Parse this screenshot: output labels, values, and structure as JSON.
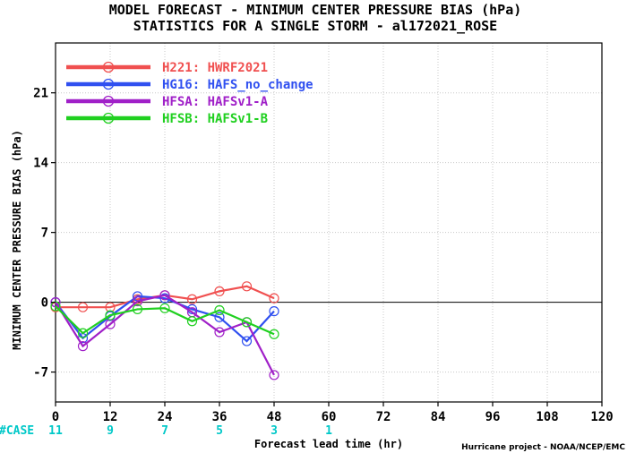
{
  "title_line1": "MODEL FORECAST - MINIMUM CENTER PRESSURE BIAS (hPa)",
  "title_line2": "STATISTICS FOR A SINGLE STORM - al172021_ROSE",
  "credit": "Hurricane project - NOAA/NCEP/EMC",
  "case_label": "#CASE",
  "case_counts": [
    {
      "x": 0,
      "n": "11"
    },
    {
      "x": 12,
      "n": "9"
    },
    {
      "x": 24,
      "n": "7"
    },
    {
      "x": 36,
      "n": "5"
    },
    {
      "x": 48,
      "n": "3"
    },
    {
      "x": 60,
      "n": "1"
    }
  ],
  "chart_data": {
    "type": "line",
    "title": "MODEL FORECAST - MINIMUM CENTER PRESSURE BIAS (hPa)",
    "subtitle": "STATISTICS FOR A SINGLE STORM - al172021_ROSE",
    "xlabel": "Forecast lead time (hr)",
    "ylabel": "MINIMUM CENTER PRESSURE BIAS (hPa)",
    "xlim": [
      0,
      120
    ],
    "ylim": [
      -10,
      26
    ],
    "xticks": [
      0,
      12,
      24,
      36,
      48,
      60,
      72,
      84,
      96,
      108,
      120
    ],
    "yticks": [
      -7,
      0,
      7,
      14,
      21
    ],
    "grid": true,
    "legend_position": "top-left",
    "series": [
      {
        "name": "H221: HWRF2021",
        "color": "#f05050",
        "x": [
          0,
          6,
          12,
          18,
          24,
          30,
          36,
          42,
          48
        ],
        "y": [
          -0.5,
          -0.5,
          -0.5,
          0.3,
          0.7,
          0.3,
          1.1,
          1.6,
          0.4
        ]
      },
      {
        "name": "HG16: HAFS_no_change",
        "color": "#3050f0",
        "x": [
          0,
          6,
          12,
          18,
          24,
          30,
          36,
          42,
          48
        ],
        "y": [
          0.0,
          -3.6,
          -1.4,
          0.6,
          0.4,
          -0.7,
          -1.5,
          -3.9,
          -0.9
        ]
      },
      {
        "name": "HFSA: HAFSv1-A",
        "color": "#a020c8",
        "x": [
          0,
          6,
          12,
          18,
          24,
          30,
          36,
          42,
          48
        ],
        "y": [
          0.0,
          -4.4,
          -2.2,
          0.1,
          0.7,
          -1.0,
          -3.0,
          -2.0,
          -7.3
        ]
      },
      {
        "name": "HFSB: HAFSv1-B",
        "color": "#20d020",
        "x": [
          0,
          6,
          12,
          18,
          24,
          30,
          36,
          42,
          48
        ],
        "y": [
          -0.4,
          -3.1,
          -1.3,
          -0.7,
          -0.6,
          -1.9,
          -0.8,
          -2.0,
          -3.2
        ]
      }
    ]
  }
}
